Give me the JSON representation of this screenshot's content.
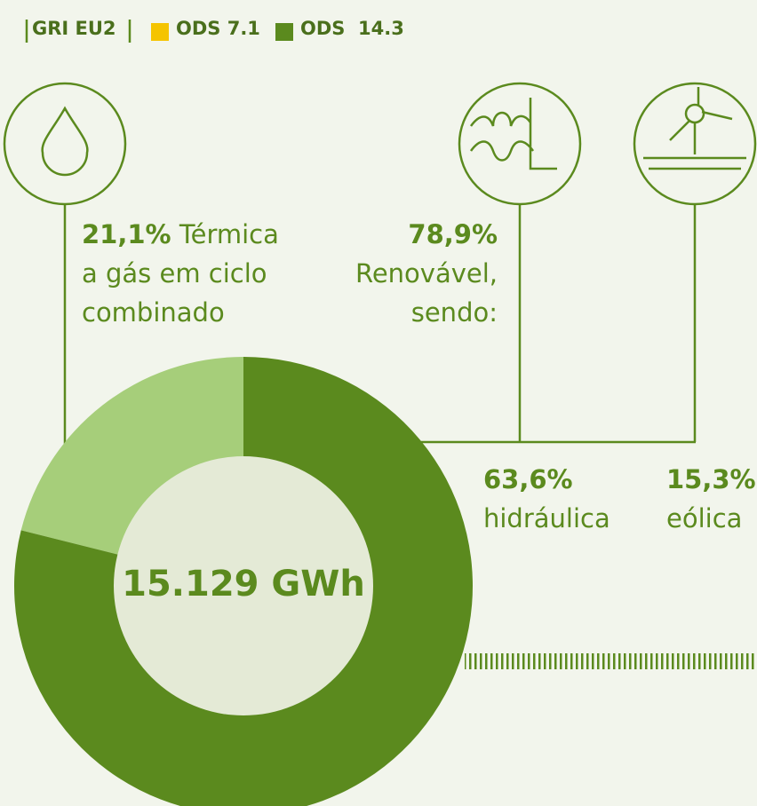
{
  "header": {
    "tags": [
      {
        "label": "GRI EU2"
      },
      {
        "label": "ODS 7.1",
        "color": "#f5c400"
      },
      {
        "label": "ODS  14.3",
        "color": "#5b8a1e"
      }
    ]
  },
  "chart_data": {
    "type": "donut",
    "center_label": "15.129 GWh",
    "categories": [
      "Térmica a gás em ciclo combinado",
      "Renovável, sendo:"
    ],
    "values": [
      21.1,
      78.9
    ],
    "value_labels": [
      "21,1%",
      "78,9%"
    ],
    "colors": [
      "#a6ce7a",
      "#5b8a1e"
    ],
    "breakdown": {
      "categories": [
        "hidráulica",
        "eólica"
      ],
      "values": [
        63.6,
        15.3
      ],
      "value_labels": [
        "63,6%",
        "15,3%"
      ]
    }
  }
}
